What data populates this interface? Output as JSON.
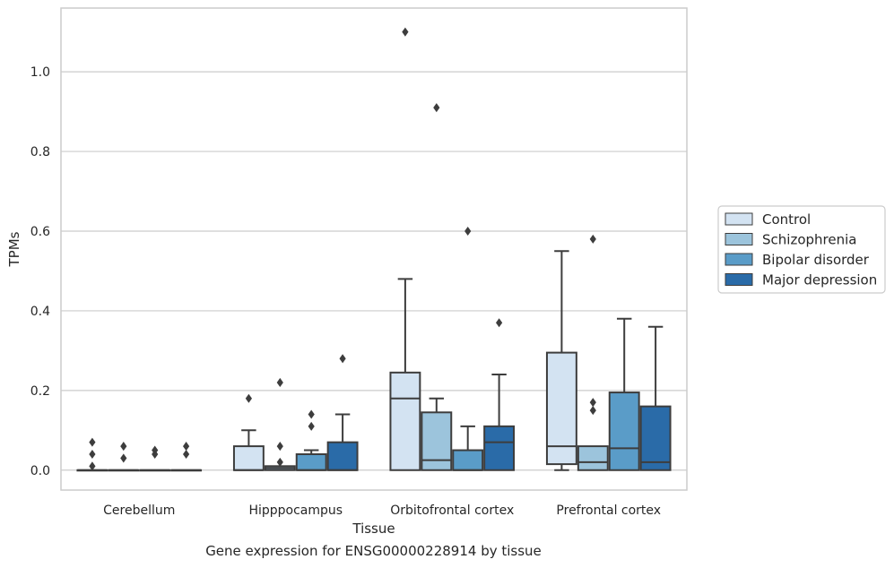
{
  "caption": "Gene expression for ENSG00000228914 by tissue",
  "chart_data": {
    "type": "box",
    "title": "",
    "xlabel": "Tissue",
    "ylabel": "TPMs",
    "categories": [
      "Cerebellum",
      "Hipppocampus",
      "Orbitofrontal cortex",
      "Prefrontal cortex"
    ],
    "ylim": [
      -0.05,
      1.16
    ],
    "yticks": [
      0.0,
      0.2,
      0.4,
      0.6,
      0.8,
      1.0
    ],
    "ytick_labels": [
      "0.0",
      "0.2",
      "0.4",
      "0.6",
      "0.8",
      "1.0"
    ],
    "grid": "horizontal",
    "legend_position": "right",
    "series": [
      {
        "name": "Control",
        "color": "#d3e3f2",
        "boxes": [
          {
            "q1": 0.0,
            "median": 0.0,
            "q3": 0.0,
            "whisker_low": 0.0,
            "whisker_high": 0.0,
            "outliers": [
              0.01,
              0.04,
              0.07
            ]
          },
          {
            "q1": 0.0,
            "median": 0.0,
            "q3": 0.06,
            "whisker_low": 0.0,
            "whisker_high": 0.1,
            "outliers": [
              0.18
            ]
          },
          {
            "q1": 0.0,
            "median": 0.18,
            "q3": 0.245,
            "whisker_low": 0.0,
            "whisker_high": 0.48,
            "outliers": [
              1.1
            ]
          },
          {
            "q1": 0.015,
            "median": 0.06,
            "q3": 0.295,
            "whisker_low": 0.0,
            "whisker_high": 0.55,
            "outliers": []
          }
        ]
      },
      {
        "name": "Schizophrenia",
        "color": "#9cc4dc",
        "boxes": [
          {
            "q1": 0.0,
            "median": 0.0,
            "q3": 0.0,
            "whisker_low": 0.0,
            "whisker_high": 0.0,
            "outliers": [
              0.03,
              0.06
            ]
          },
          {
            "q1": 0.0,
            "median": 0.005,
            "q3": 0.01,
            "whisker_low": 0.0,
            "whisker_high": 0.01,
            "outliers": [
              0.02,
              0.06,
              0.22
            ]
          },
          {
            "q1": 0.0,
            "median": 0.025,
            "q3": 0.145,
            "whisker_low": 0.0,
            "whisker_high": 0.18,
            "outliers": [
              0.91
            ]
          },
          {
            "q1": 0.0,
            "median": 0.02,
            "q3": 0.06,
            "whisker_low": 0.0,
            "whisker_high": 0.06,
            "outliers": [
              0.15,
              0.17,
              0.58
            ]
          }
        ]
      },
      {
        "name": "Bipolar disorder",
        "color": "#5a9cc8",
        "boxes": [
          {
            "q1": 0.0,
            "median": 0.0,
            "q3": 0.0,
            "whisker_low": 0.0,
            "whisker_high": 0.0,
            "outliers": [
              0.04,
              0.05
            ]
          },
          {
            "q1": 0.0,
            "median": 0.0,
            "q3": 0.04,
            "whisker_low": 0.0,
            "whisker_high": 0.05,
            "outliers": [
              0.11,
              0.14
            ]
          },
          {
            "q1": 0.0,
            "median": 0.0,
            "q3": 0.05,
            "whisker_low": 0.0,
            "whisker_high": 0.11,
            "outliers": [
              0.6
            ]
          },
          {
            "q1": 0.0,
            "median": 0.055,
            "q3": 0.195,
            "whisker_low": 0.0,
            "whisker_high": 0.38,
            "outliers": []
          }
        ]
      },
      {
        "name": "Major depression",
        "color": "#2a6ba8",
        "boxes": [
          {
            "q1": 0.0,
            "median": 0.0,
            "q3": 0.0,
            "whisker_low": 0.0,
            "whisker_high": 0.0,
            "outliers": [
              0.04,
              0.06
            ]
          },
          {
            "q1": 0.0,
            "median": 0.0,
            "q3": 0.07,
            "whisker_low": 0.0,
            "whisker_high": 0.14,
            "outliers": [
              0.28
            ]
          },
          {
            "q1": 0.0,
            "median": 0.07,
            "q3": 0.11,
            "whisker_low": 0.0,
            "whisker_high": 0.24,
            "outliers": [
              0.37
            ]
          },
          {
            "q1": 0.0,
            "median": 0.02,
            "q3": 0.16,
            "whisker_low": 0.0,
            "whisker_high": 0.36,
            "outliers": []
          }
        ]
      }
    ]
  }
}
